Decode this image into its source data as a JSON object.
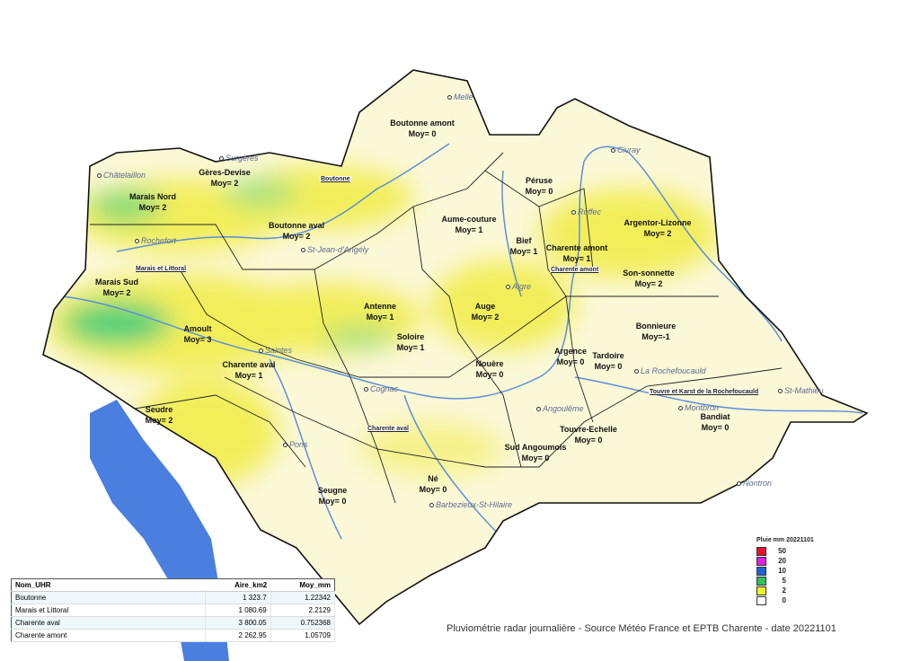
{
  "map": {
    "colors": {
      "sea": "#4a7fe0",
      "river": "#5b8fd8",
      "light": "#fbf8d8",
      "yellow": "#f2ee5a",
      "green": "#4fd07a"
    },
    "units": [
      {
        "name": "Boutonne amont",
        "moy": "Moy= 0"
      },
      {
        "name": "Gères-Devise",
        "moy": "Moy= 2"
      },
      {
        "name": "Marais Nord",
        "moy": "Moy= 2"
      },
      {
        "name": "Boutonne aval",
        "moy": "Moy= 2"
      },
      {
        "name": "Péruse",
        "moy": "Moy= 0"
      },
      {
        "name": "Aume-couture",
        "moy": "Moy= 1"
      },
      {
        "name": "Argentor-Lizonne",
        "moy": "Moy= 2"
      },
      {
        "name": "Bief",
        "moy": "Moy= 1"
      },
      {
        "name": "Charente amont",
        "moy": "Moy= 1"
      },
      {
        "name": "Son-sonnette",
        "moy": "Moy= 2"
      },
      {
        "name": "Marais Sud",
        "moy": "Moy= 2"
      },
      {
        "name": "Antenne",
        "moy": "Moy= 1"
      },
      {
        "name": "Auge",
        "moy": "Moy= 2"
      },
      {
        "name": "Amoult",
        "moy": "Moy= 3"
      },
      {
        "name": "Soloire",
        "moy": "Moy= 1"
      },
      {
        "name": "Bonnieure",
        "moy": "Moy=-1"
      },
      {
        "name": "Argence",
        "moy": "Moy= 0"
      },
      {
        "name": "Tardoire",
        "moy": "Moy= 0"
      },
      {
        "name": "Charente aval",
        "moy": "Moy= 1"
      },
      {
        "name": "Nouère",
        "moy": "Moy= 0"
      },
      {
        "name": "Seudre",
        "moy": "Moy= 2"
      },
      {
        "name": "Touvre-Echelle",
        "moy": "Moy= 0"
      },
      {
        "name": "Bandiat",
        "moy": "Moy= 0"
      },
      {
        "name": "Sud Angoumois",
        "moy": "Moy= 0"
      },
      {
        "name": "Né",
        "moy": "Moy= 0"
      },
      {
        "name": "Seugne",
        "moy": "Moy= 0"
      }
    ],
    "towns": [
      "Melle",
      "Surgères",
      "Châtelaillon",
      "Rochefort",
      "St-Jean-d'Angély",
      "Civray",
      "Ruffec",
      "Aigre",
      "Saintes",
      "Cognac",
      "Angoulême",
      "La Rochefoucauld",
      "St-Mathieu",
      "Montbron",
      "Nontron",
      "Pons",
      "Barbezieux-St-Hilaire"
    ],
    "groups": [
      "Boutonne",
      "Marais et Littoral",
      "Charente amont",
      "Charente aval",
      "Touvre et Karst de la Rochefoucauld"
    ]
  },
  "legend": {
    "title": "Pluie mm 20221101",
    "items": [
      {
        "value": "50",
        "color": "#e8102a"
      },
      {
        "value": "20",
        "color": "#e020e0"
      },
      {
        "value": "10",
        "color": "#2060d8"
      },
      {
        "value": "5",
        "color": "#30c060"
      },
      {
        "value": "2",
        "color": "#f0f030"
      },
      {
        "value": "0",
        "color": "#ffffff"
      }
    ]
  },
  "table": {
    "headers": [
      "Nom_UHR",
      "Aire_km2",
      "Moy_mm"
    ],
    "rows": [
      [
        "Boutonne",
        "1 323.7",
        "1.22342"
      ],
      [
        "Marais et Littoral",
        "1 080.69",
        "2.2129"
      ],
      [
        "Charente aval",
        "3 800.05",
        "0.752368"
      ],
      [
        "Charente amont",
        "2 262.95",
        "1.05709"
      ]
    ]
  },
  "caption": "Pluviométrie radar journalière - Source Météo France et EPTB Charente - date 20221101"
}
